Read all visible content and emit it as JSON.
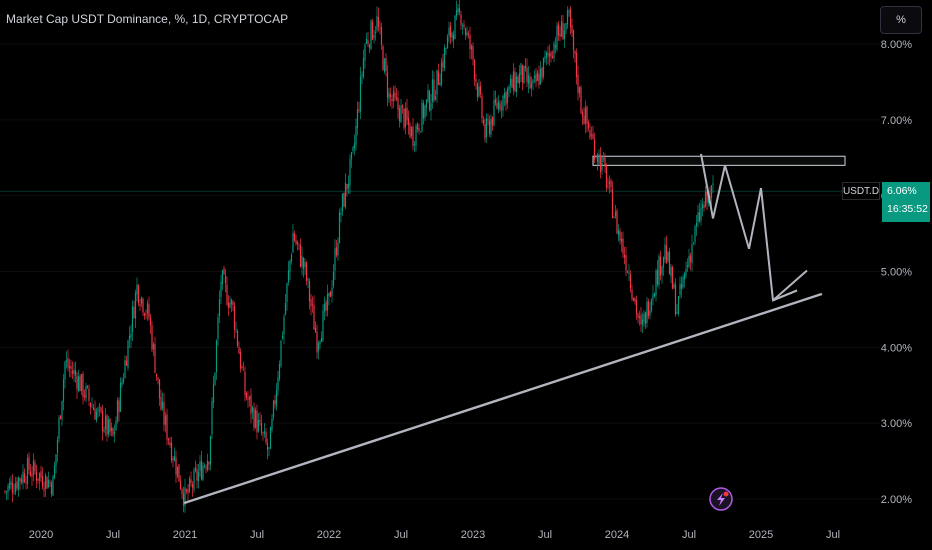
{
  "header": {
    "title": "Market Cap USDT Dominance, %, 1D, CRYPTOCAP"
  },
  "toolbar": {
    "percent_label": "%"
  },
  "price_tag": {
    "symbol": "USDT.D",
    "value": "6.06%",
    "countdown": "16:35:52"
  },
  "colors": {
    "up": "#089981",
    "down": "#f23645",
    "drawing": "#b2b5be",
    "background": "#000000",
    "text": "#b2b5be"
  },
  "icons": {
    "bottom": "lightning-icon"
  },
  "chart_data": {
    "type": "candlestick",
    "ylim": [
      1.8,
      8.4
    ],
    "x_tick_labels": [
      "2020",
      "Jul",
      "2021",
      "Jul",
      "2022",
      "Jul",
      "2023",
      "Jul",
      "2024",
      "Jul",
      "2025",
      "Jul"
    ],
    "y_tick_labels": [
      "8.00%",
      "7.00%",
      "6.00%",
      "5.00%",
      "4.00%",
      "3.00%",
      "2.00%"
    ],
    "y_tick_values": [
      8,
      7,
      6,
      5,
      4,
      3,
      2
    ],
    "current_value": 6.06,
    "series": [
      {
        "x": [
          "2019-10",
          "2019-12",
          "2020-02",
          "2020-03",
          "2020-04",
          "2020-05",
          "2020-07",
          "2020-09",
          "2020-10",
          "2020-11",
          "2021-01",
          "2021-03",
          "2021-04",
          "2021-05",
          "2021-06",
          "2021-08",
          "2021-10",
          "2021-11",
          "2021-12",
          "2022-01",
          "2022-02",
          "2022-03",
          "2022-04",
          "2022-05",
          "2022-06",
          "2022-07",
          "2022-08",
          "2022-10",
          "2022-11",
          "2022-12",
          "2023-01",
          "2023-02",
          "2023-03",
          "2023-05",
          "2023-06",
          "2023-08",
          "2023-09",
          "2023-10",
          "2023-11",
          "2023-12",
          "2024-01",
          "2024-02",
          "2024-03",
          "2024-04",
          "2024-05",
          "2024-06",
          "2024-07",
          "2024-08",
          "2024-09"
        ],
        "values": [
          2.1,
          2.4,
          2.2,
          3.8,
          3.6,
          3.3,
          2.8,
          4.8,
          4.4,
          3.2,
          2.0,
          2.6,
          4.9,
          4.5,
          3.4,
          2.6,
          5.5,
          5.0,
          4.1,
          4.6,
          5.8,
          6.5,
          8.0,
          8.3,
          7.3,
          7.1,
          6.8,
          7.5,
          8.1,
          8.4,
          7.8,
          6.8,
          7.2,
          7.6,
          7.4,
          8.1,
          8.3,
          7.2,
          6.7,
          6.3,
          5.6,
          5.0,
          4.2,
          4.8,
          5.3,
          4.5,
          5.2,
          5.8,
          6.06
        ]
      }
    ],
    "annotations": {
      "trendline": {
        "from": [
          "2021-01",
          1.95
        ],
        "to": [
          "2025-06",
          4.7
        ]
      },
      "resistance_zone": {
        "x_from": "2023-11",
        "x_to": "2025-08",
        "y_low": 6.4,
        "y_high": 6.52
      },
      "projection_path": {
        "x": [
          "2024-08",
          "2024-09",
          "2024-10",
          "2024-12",
          "2025-01",
          "2025-02",
          "2025-04",
          "2025-05"
        ],
        "y": [
          6.55,
          5.7,
          6.4,
          5.3,
          6.1,
          4.62,
          4.75,
          4.65
        ]
      }
    }
  }
}
